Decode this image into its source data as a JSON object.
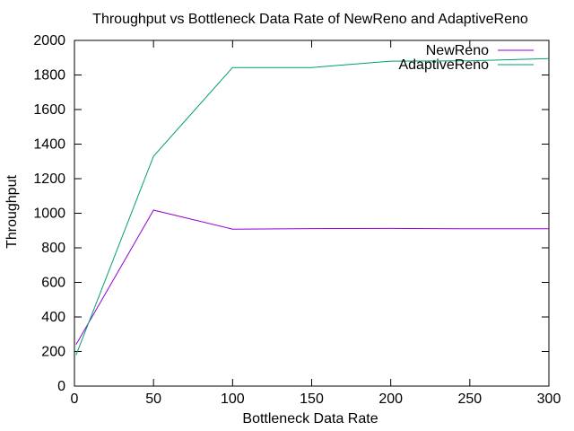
{
  "chart_data": {
    "type": "line",
    "title": "Throughput vs Bottleneck Data Rate of NewReno and AdaptiveReno",
    "xlabel": "Bottleneck Data Rate",
    "ylabel": "Throughput",
    "xlim": [
      0,
      300
    ],
    "ylim": [
      0,
      2000
    ],
    "x_ticks": [
      0,
      50,
      100,
      150,
      200,
      250,
      300
    ],
    "y_ticks": [
      0,
      200,
      400,
      600,
      800,
      1000,
      1200,
      1400,
      1600,
      1800,
      2000
    ],
    "grid": false,
    "legend_position": "top-right",
    "series": [
      {
        "name": "NewReno",
        "color": "#9400d3",
        "x": [
          1,
          50,
          100,
          150,
          200,
          250,
          300
        ],
        "y": [
          240,
          1018,
          908,
          911,
          912,
          910,
          910
        ]
      },
      {
        "name": "AdaptiveReno",
        "color": "#009e73",
        "x": [
          1,
          50,
          100,
          150,
          200,
          250,
          300
        ],
        "y": [
          180,
          1330,
          1843,
          1843,
          1880,
          1882,
          1895
        ]
      }
    ]
  }
}
